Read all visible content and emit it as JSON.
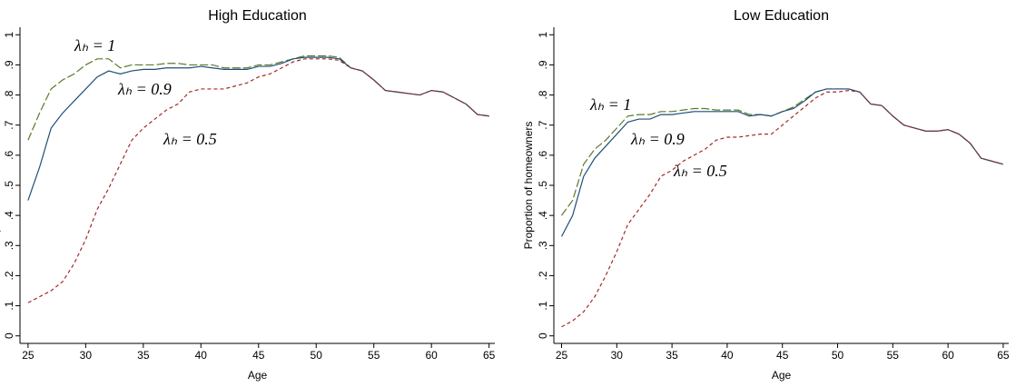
{
  "chart_data": [
    {
      "type": "line",
      "title": "High Education",
      "xlabel": "Age",
      "ylabel": "Proportion of homeowners",
      "x": [
        25,
        26,
        27,
        28,
        29,
        30,
        31,
        32,
        33,
        34,
        35,
        36,
        37,
        38,
        39,
        40,
        41,
        42,
        43,
        44,
        45,
        46,
        47,
        48,
        49,
        50,
        51,
        52,
        53,
        54,
        55,
        56,
        57,
        58,
        59,
        60,
        61,
        62,
        63,
        64,
        65
      ],
      "xlim": [
        24.3,
        65.5
      ],
      "xticks": [
        25,
        30,
        35,
        40,
        45,
        50,
        55,
        60,
        65
      ],
      "ylim": [
        -0.025,
        1.025
      ],
      "yticks": [
        0,
        {
          "value": 0.1,
          "label": ".1"
        },
        {
          "value": 0.2,
          "label": ".2"
        },
        {
          "value": 0.3,
          "label": ".3"
        },
        {
          "value": 0.4,
          "label": ".4"
        },
        {
          "value": 0.5,
          "label": ".5"
        },
        {
          "value": 0.6,
          "label": ".6"
        },
        {
          "value": 0.7,
          "label": ".7"
        },
        {
          "value": 0.8,
          "label": ".8"
        },
        {
          "value": 0.9,
          "label": ".9"
        },
        1
      ],
      "series": [
        {
          "name": "λₕ = 1",
          "color": "#5a7a2a",
          "values": [
            0.65,
            0.74,
            0.82,
            0.85,
            0.87,
            0.9,
            0.92,
            0.92,
            0.89,
            0.9,
            0.9,
            0.9,
            0.905,
            0.905,
            0.9,
            0.9,
            0.9,
            0.89,
            0.89,
            0.89,
            0.9,
            0.9,
            0.91,
            0.92,
            0.93,
            0.93,
            0.93,
            0.925,
            0.89,
            0.88,
            0.85,
            0.815,
            0.81,
            0.805,
            0.8,
            0.815,
            0.81,
            0.79,
            0.77,
            0.735,
            0.73
          ]
        },
        {
          "name": "λₕ = 0.9",
          "color": "#1f4e79",
          "values": [
            0.45,
            0.56,
            0.69,
            0.74,
            0.78,
            0.82,
            0.86,
            0.88,
            0.87,
            0.88,
            0.885,
            0.885,
            0.89,
            0.89,
            0.89,
            0.895,
            0.89,
            0.885,
            0.885,
            0.885,
            0.895,
            0.895,
            0.905,
            0.92,
            0.925,
            0.925,
            0.925,
            0.92,
            0.89,
            0.88,
            0.85,
            0.815,
            0.81,
            0.805,
            0.8,
            0.815,
            0.81,
            0.79,
            0.77,
            0.735,
            0.73
          ]
        },
        {
          "name": "λₕ = 0.5",
          "color": "#a52a2a",
          "values": [
            0.11,
            0.13,
            0.15,
            0.18,
            0.24,
            0.32,
            0.42,
            0.49,
            0.57,
            0.65,
            0.69,
            0.72,
            0.75,
            0.77,
            0.81,
            0.82,
            0.82,
            0.82,
            0.83,
            0.84,
            0.86,
            0.87,
            0.89,
            0.91,
            0.92,
            0.92,
            0.92,
            0.915,
            0.89,
            0.88,
            0.85,
            0.815,
            0.81,
            0.805,
            0.8,
            0.815,
            0.81,
            0.79,
            0.77,
            0.735,
            0.73
          ]
        }
      ]
    },
    {
      "type": "line",
      "title": "Low Education",
      "xlabel": "Age",
      "ylabel": "Proportion of homeowners",
      "x": [
        25,
        26,
        27,
        28,
        29,
        30,
        31,
        32,
        33,
        34,
        35,
        36,
        37,
        38,
        39,
        40,
        41,
        42,
        43,
        44,
        45,
        46,
        47,
        48,
        49,
        50,
        51,
        52,
        53,
        54,
        55,
        56,
        57,
        58,
        59,
        60,
        61,
        62,
        63,
        64,
        65
      ],
      "xlim": [
        24.3,
        65.5
      ],
      "xticks": [
        25,
        30,
        35,
        40,
        45,
        50,
        55,
        60,
        65
      ],
      "ylim": [
        -0.025,
        1.025
      ],
      "yticks": [
        0,
        {
          "value": 0.1,
          "label": ".1"
        },
        {
          "value": 0.2,
          "label": ".2"
        },
        {
          "value": 0.3,
          "label": ".3"
        },
        {
          "value": 0.4,
          "label": ".4"
        },
        {
          "value": 0.5,
          "label": ".5"
        },
        {
          "value": 0.6,
          "label": ".6"
        },
        {
          "value": 0.7,
          "label": ".7"
        },
        {
          "value": 0.8,
          "label": ".8"
        },
        {
          "value": 0.9,
          "label": ".9"
        },
        1
      ],
      "series": [
        {
          "name": "λₕ = 1",
          "color": "#5a7a2a",
          "values": [
            0.4,
            0.45,
            0.57,
            0.62,
            0.65,
            0.69,
            0.73,
            0.735,
            0.735,
            0.745,
            0.745,
            0.75,
            0.755,
            0.755,
            0.75,
            0.75,
            0.75,
            0.735,
            0.735,
            0.73,
            0.745,
            0.76,
            0.785,
            0.81,
            0.82,
            0.82,
            0.82,
            0.81,
            0.77,
            0.765,
            0.73,
            0.7,
            0.69,
            0.68,
            0.68,
            0.685,
            0.67,
            0.64,
            0.59,
            0.58,
            0.57
          ]
        },
        {
          "name": "λₕ = 0.9",
          "color": "#1f4e79",
          "values": [
            0.33,
            0.4,
            0.53,
            0.59,
            0.63,
            0.67,
            0.71,
            0.72,
            0.72,
            0.735,
            0.735,
            0.74,
            0.745,
            0.745,
            0.745,
            0.745,
            0.745,
            0.73,
            0.735,
            0.73,
            0.745,
            0.755,
            0.78,
            0.81,
            0.82,
            0.82,
            0.82,
            0.81,
            0.77,
            0.765,
            0.73,
            0.7,
            0.69,
            0.68,
            0.68,
            0.685,
            0.67,
            0.64,
            0.59,
            0.58,
            0.57
          ]
        },
        {
          "name": "λₕ = 0.5",
          "color": "#a52a2a",
          "values": [
            0.03,
            0.05,
            0.08,
            0.13,
            0.2,
            0.28,
            0.37,
            0.42,
            0.47,
            0.53,
            0.55,
            0.58,
            0.6,
            0.62,
            0.65,
            0.66,
            0.66,
            0.665,
            0.67,
            0.67,
            0.7,
            0.73,
            0.76,
            0.79,
            0.81,
            0.81,
            0.815,
            0.81,
            0.77,
            0.765,
            0.73,
            0.7,
            0.69,
            0.68,
            0.68,
            0.685,
            0.67,
            0.64,
            0.59,
            0.58,
            0.57
          ]
        }
      ]
    }
  ]
}
